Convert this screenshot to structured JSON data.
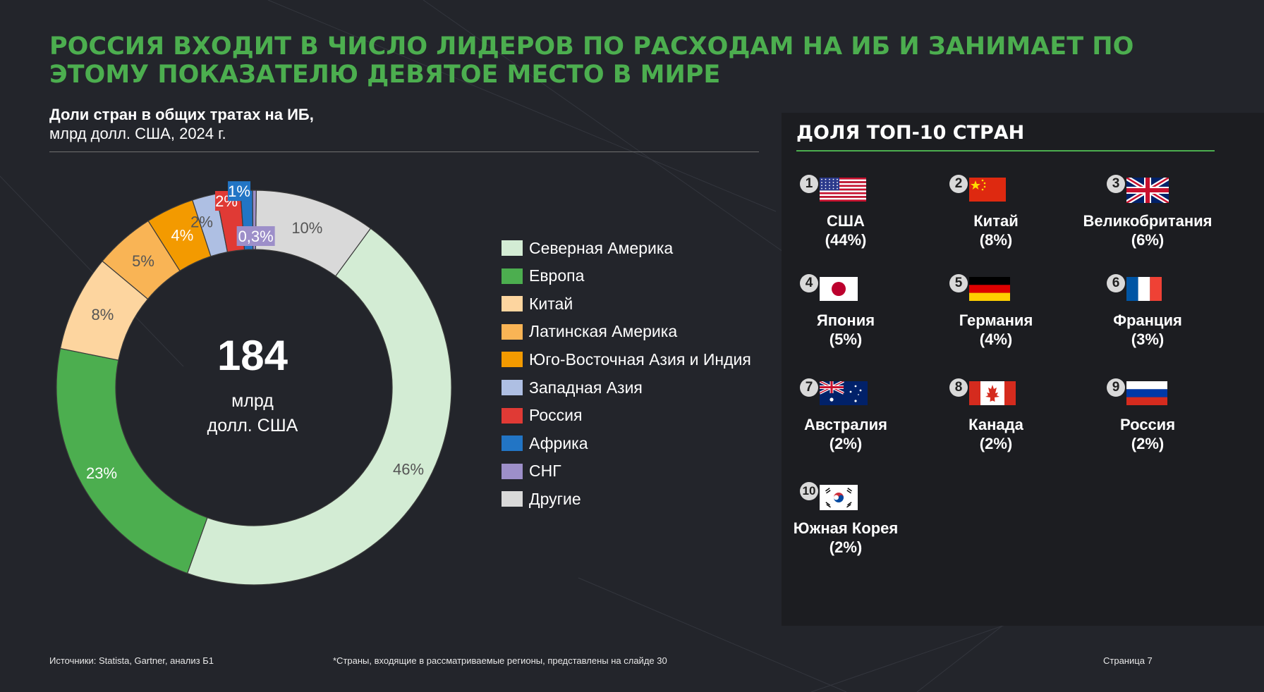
{
  "title": "РОССИЯ ВХОДИТ В ЧИСЛО ЛИДЕРОВ ПО РАСХОДАМ НА ИБ И ЗАНИМАЕТ ПО ЭТОМУ ПОКАЗАТЕЛЮ ДЕВЯТОЕ МЕСТО В МИРЕ",
  "chart_data": {
    "type": "pie",
    "title": "Доли стран в общих тратах на ИБ,",
    "subtitle": "млрд долл. США, 2024 г.",
    "center_value": "184",
    "center_unit_line1": "млрд",
    "center_unit_line2": "долл. США",
    "legend_position": "right",
    "slices": [
      {
        "name": "Северная Америка",
        "value": 46,
        "label": "46%",
        "color": "#d3ecd4",
        "label_color": "#555555"
      },
      {
        "name": "Европа",
        "value": 23,
        "label": "23%",
        "color": "#4cae4f",
        "label_color": "#ffffff"
      },
      {
        "name": "Китай",
        "value": 8,
        "label": "8%",
        "color": "#fdd59f",
        "label_color": "#555555"
      },
      {
        "name": "Латинская Америка",
        "value": 5,
        "label": "5%",
        "color": "#f9b455",
        "label_color": "#555555"
      },
      {
        "name": "Юго-Восточная Азия и Индия",
        "value": 4,
        "label": "4%",
        "color": "#f39a00",
        "label_color": "#ffffff"
      },
      {
        "name": "Западная Азия",
        "value": 2,
        "label": "2%",
        "color": "#aebfe3",
        "label_color": "#555555"
      },
      {
        "name": "Россия",
        "value": 2,
        "label": "2%",
        "color": "#e03a35",
        "label_color": "#ffffff"
      },
      {
        "name": "Африка",
        "value": 1,
        "label": "1%",
        "color": "#2275c5",
        "label_color": "#ffffff"
      },
      {
        "name": "СНГ",
        "value": 0.3,
        "label": "0,3%",
        "color": "#9d8fc9",
        "label_color": "#ffffff"
      },
      {
        "name": "Другие",
        "value": 10,
        "label": "10%",
        "color": "#d9d9d9",
        "label_color": "#555555"
      }
    ]
  },
  "top10": {
    "title": "ДОЛЯ ТОП-10 СТРАН",
    "countries": [
      {
        "rank": "1",
        "name": "США",
        "share": "(44%)",
        "flag": "us-flag"
      },
      {
        "rank": "2",
        "name": "Китай",
        "share": "(8%)",
        "flag": "cn-flag"
      },
      {
        "rank": "3",
        "name": "Великобритания",
        "share": "(6%)",
        "flag": "gb-flag"
      },
      {
        "rank": "4",
        "name": "Япония",
        "share": "(5%)",
        "flag": "jp-flag"
      },
      {
        "rank": "5",
        "name": "Германия",
        "share": "(4%)",
        "flag": "de-flag"
      },
      {
        "rank": "6",
        "name": "Франция",
        "share": "(3%)",
        "flag": "fr-flag"
      },
      {
        "rank": "7",
        "name": "Австралия",
        "share": "(2%)",
        "flag": "au-flag"
      },
      {
        "rank": "8",
        "name": "Канада",
        "share": "(2%)",
        "flag": "ca-flag"
      },
      {
        "rank": "9",
        "name": "Россия",
        "share": "(2%)",
        "flag": "ru-flag"
      },
      {
        "rank": "10",
        "name": "Южная Корея",
        "share": "(2%)",
        "flag": "kr-flag"
      }
    ]
  },
  "footer": {
    "sources": "Источники: Statista, Gartner, анализ Б1",
    "note": "*Страны, входящие в рассматриваемые регионы, представлены на слайде 30",
    "page": "Страница 7"
  }
}
